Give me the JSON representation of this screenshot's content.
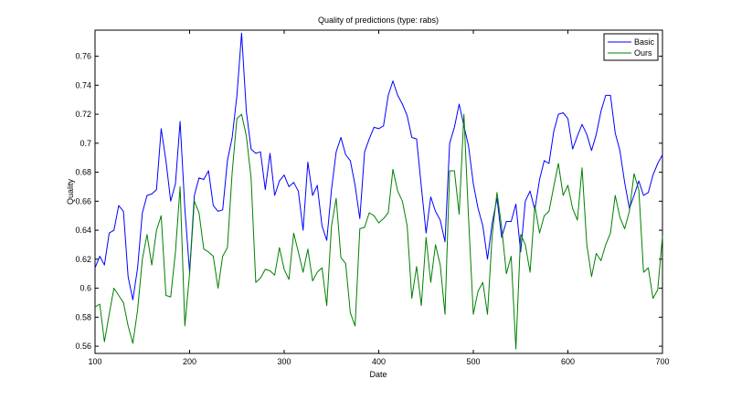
{
  "chart_data": {
    "type": "line",
    "title": "Quality of predictions (type: rabs)",
    "xlabel": "Date",
    "ylabel": "Quality",
    "xlim": [
      100,
      700
    ],
    "ylim": [
      0.555,
      0.778
    ],
    "xticks": [
      100,
      200,
      300,
      400,
      500,
      600,
      700
    ],
    "xtick_labels": [
      "100",
      "200",
      "300",
      "400",
      "500",
      "600",
      "700"
    ],
    "yticks": [
      0.56,
      0.58,
      0.6,
      0.62,
      0.64,
      0.66,
      0.68,
      0.7,
      0.72,
      0.74,
      0.76
    ],
    "ytick_labels": [
      "0.56",
      "0.58",
      "0.6",
      "0.62",
      "0.64",
      "0.66",
      "0.68",
      "0.7",
      "0.72",
      "0.74",
      "0.76"
    ],
    "grid": false,
    "legend_position": "top-right",
    "x": [
      100,
      105,
      110,
      115,
      120,
      125,
      130,
      135,
      140,
      145,
      150,
      155,
      160,
      165,
      170,
      175,
      180,
      185,
      190,
      195,
      200,
      205,
      210,
      215,
      220,
      225,
      230,
      235,
      240,
      245,
      250,
      255,
      260,
      265,
      270,
      275,
      280,
      285,
      290,
      295,
      300,
      305,
      310,
      315,
      320,
      325,
      330,
      335,
      340,
      345,
      350,
      355,
      360,
      365,
      370,
      375,
      380,
      385,
      390,
      395,
      400,
      405,
      410,
      415,
      420,
      425,
      430,
      435,
      440,
      445,
      450,
      455,
      460,
      465,
      470,
      475,
      480,
      485,
      490,
      495,
      500,
      505,
      510,
      515,
      520,
      525,
      530,
      535,
      540,
      545,
      550,
      555,
      560,
      565,
      570,
      575,
      580,
      585,
      590,
      595,
      600,
      605,
      610,
      615,
      620,
      625,
      630,
      635,
      640,
      645,
      650,
      655,
      660,
      665,
      670,
      675,
      680,
      685,
      690,
      695,
      700
    ],
    "series": [
      {
        "name": "Basic",
        "color": "#0000ff",
        "values": [
          0.614,
          0.622,
          0.616,
          0.638,
          0.64,
          0.657,
          0.653,
          0.608,
          0.592,
          0.614,
          0.652,
          0.664,
          0.665,
          0.668,
          0.71,
          0.688,
          0.66,
          0.672,
          0.715,
          0.655,
          0.611,
          0.664,
          0.676,
          0.675,
          0.681,
          0.657,
          0.653,
          0.654,
          0.688,
          0.704,
          0.733,
          0.776,
          0.722,
          0.696,
          0.693,
          0.694,
          0.668,
          0.693,
          0.664,
          0.674,
          0.678,
          0.67,
          0.673,
          0.667,
          0.64,
          0.687,
          0.664,
          0.671,
          0.643,
          0.633,
          0.668,
          0.694,
          0.704,
          0.692,
          0.688,
          0.671,
          0.648,
          0.694,
          0.703,
          0.711,
          0.71,
          0.712,
          0.733,
          0.743,
          0.733,
          0.727,
          0.719,
          0.704,
          0.703,
          0.67,
          0.638,
          0.663,
          0.653,
          0.647,
          0.632,
          0.7,
          0.711,
          0.727,
          0.712,
          0.698,
          0.672,
          0.655,
          0.643,
          0.62,
          0.645,
          0.662,
          0.635,
          0.646,
          0.646,
          0.658,
          0.625,
          0.66,
          0.667,
          0.654,
          0.675,
          0.688,
          0.686,
          0.708,
          0.72,
          0.721,
          0.717,
          0.696,
          0.705,
          0.713,
          0.706,
          0.695,
          0.706,
          0.722,
          0.733,
          0.733,
          0.707,
          0.695,
          0.673,
          0.655,
          0.664,
          0.674,
          0.664,
          0.666,
          0.678,
          0.686,
          0.692
        ],
        "values_note": ""
      },
      {
        "name": "Ours",
        "color": "#008000",
        "values": [
          0.587,
          0.589,
          0.563,
          0.582,
          0.6,
          0.595,
          0.59,
          0.574,
          0.562,
          0.585,
          0.62,
          0.637,
          0.616,
          0.64,
          0.65,
          0.595,
          0.594,
          0.625,
          0.67,
          0.574,
          0.61,
          0.66,
          0.652,
          0.627,
          0.625,
          0.622,
          0.6,
          0.622,
          0.628,
          0.68,
          0.717,
          0.72,
          0.705,
          0.676,
          0.604,
          0.607,
          0.613,
          0.612,
          0.609,
          0.628,
          0.613,
          0.606,
          0.638,
          0.625,
          0.611,
          0.627,
          0.605,
          0.611,
          0.614,
          0.588,
          0.643,
          0.662,
          0.621,
          0.617,
          0.583,
          0.574,
          0.641,
          0.642,
          0.652,
          0.65,
          0.645,
          0.648,
          0.652,
          0.682,
          0.667,
          0.66,
          0.643,
          0.593,
          0.615,
          0.588,
          0.635,
          0.604,
          0.63,
          0.616,
          0.582,
          0.681,
          0.681,
          0.651,
          0.72,
          0.648,
          0.582,
          0.598,
          0.604,
          0.582,
          0.637,
          0.666,
          0.642,
          0.61,
          0.622,
          0.558,
          0.637,
          0.63,
          0.611,
          0.657,
          0.638,
          0.65,
          0.653,
          0.67,
          0.686,
          0.664,
          0.671,
          0.655,
          0.647,
          0.683,
          0.63,
          0.608,
          0.624,
          0.619,
          0.63,
          0.638,
          0.664,
          0.649,
          0.641,
          0.653,
          0.679,
          0.668,
          0.611,
          0.614,
          0.593,
          0.599,
          0.636
        ],
        "values_note": ""
      }
    ]
  }
}
